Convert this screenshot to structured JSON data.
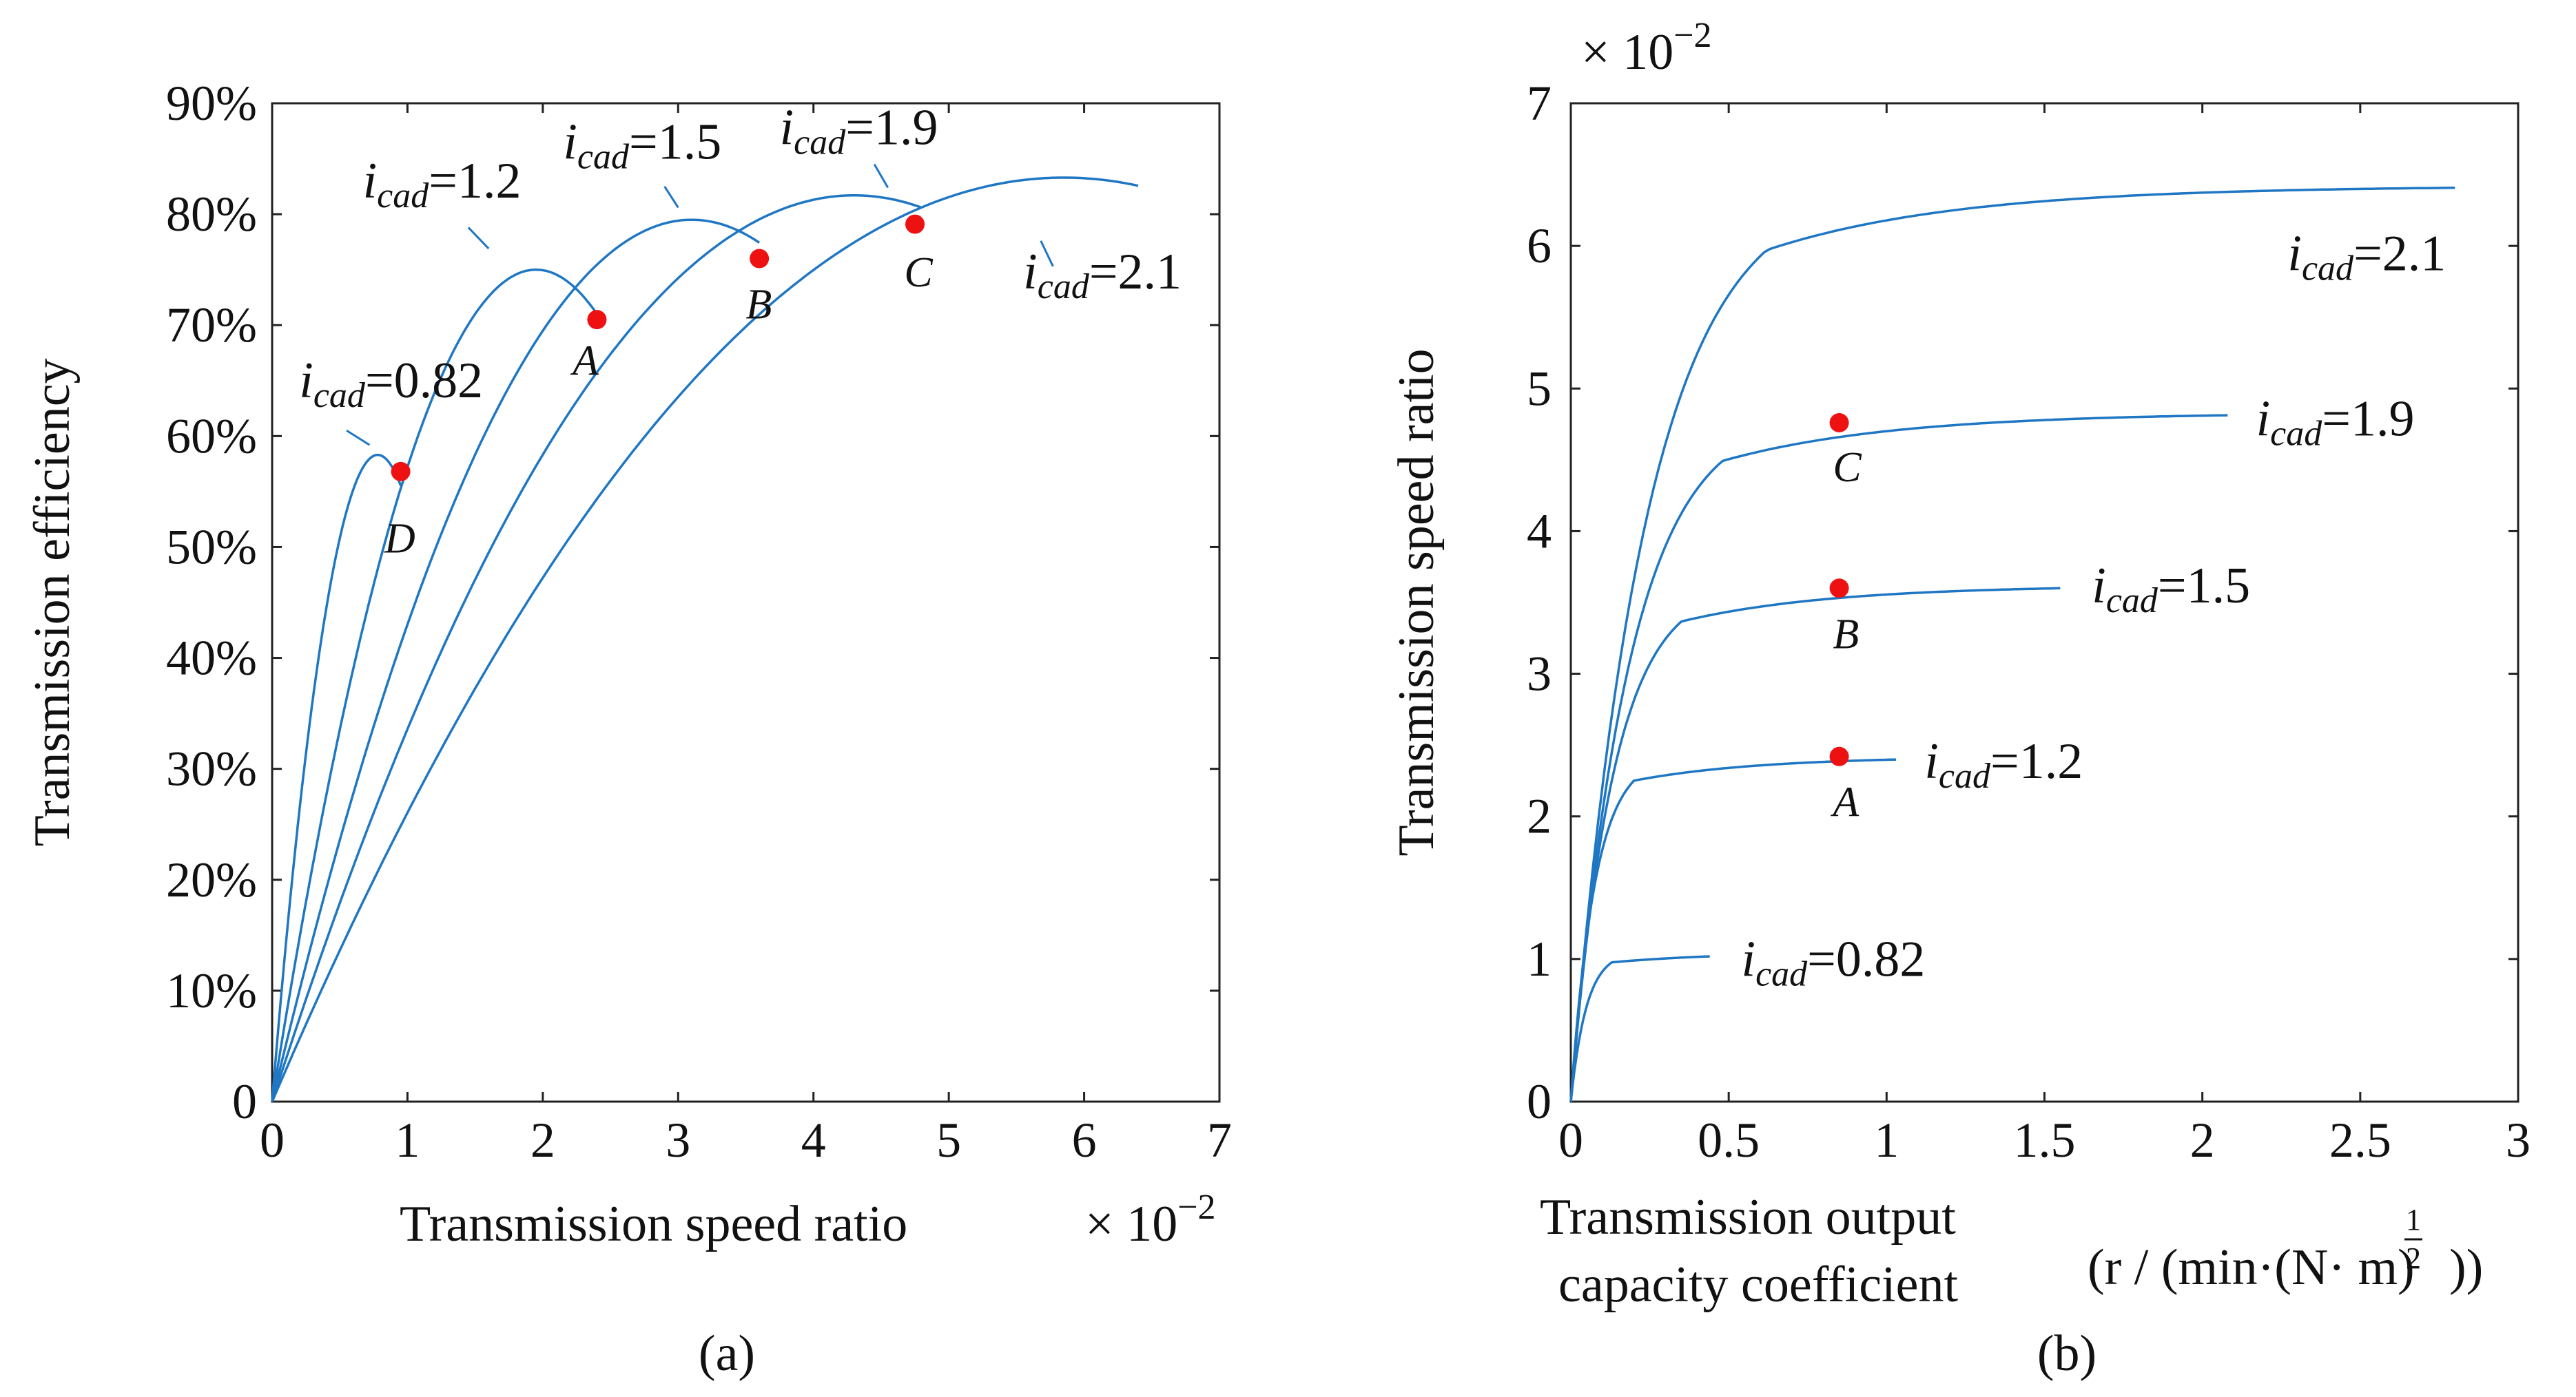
{
  "colors": {
    "curve": "#1f77c4",
    "point": "#ee1111",
    "axis": "#222222"
  },
  "chart_data": [
    {
      "type": "line",
      "caption": "(a)",
      "xlabel": "Transmission speed ratio",
      "x_multiplier": "× 10",
      "x_multiplier_exp": "−2",
      "ylabel": "Transmission efficiency",
      "xlim": [
        0,
        7
      ],
      "ylim": [
        0,
        90
      ],
      "xticks": [
        0,
        1,
        2,
        3,
        4,
        5,
        6,
        7
      ],
      "yticks": [
        0,
        10,
        20,
        30,
        40,
        50,
        60,
        70,
        80,
        90
      ],
      "ytick_labels": [
        "0",
        "10%",
        "20%",
        "30%",
        "40%",
        "50%",
        "60%",
        "70%",
        "80%",
        "90%"
      ],
      "series": [
        {
          "name": "0.82",
          "xmax": 0.95,
          "peak_x": 0.78,
          "peak_y": 58.3,
          "label_x": 0.2,
          "label_y": 63.5,
          "leader": [
            0.55,
            60.5,
            0.72,
            59.2
          ]
        },
        {
          "name": "1.2",
          "xmax": 2.4,
          "peak_x": 1.95,
          "peak_y": 75.0,
          "label_x": 0.67,
          "label_y": 81.5,
          "leader": [
            1.45,
            78.8,
            1.6,
            76.9
          ]
        },
        {
          "name": "1.5",
          "xmax": 3.6,
          "peak_x": 3.1,
          "peak_y": 79.5,
          "label_x": 2.15,
          "label_y": 85.0,
          "leader": [
            2.9,
            82.5,
            3.0,
            80.6
          ]
        },
        {
          "name": "1.9",
          "xmax": 4.8,
          "peak_x": 4.3,
          "peak_y": 81.7,
          "label_x": 3.75,
          "label_y": 86.3,
          "leader": [
            4.45,
            84.5,
            4.55,
            82.4
          ]
        },
        {
          "name": "2.1",
          "xmax": 6.4,
          "peak_x": 5.85,
          "peak_y": 83.3,
          "label_x": 5.55,
          "label_y": 73.3,
          "leader": [
            5.77,
            75.3,
            5.68,
            77.6
          ]
        }
      ],
      "points": [
        {
          "label": "A",
          "x": 2.4,
          "y": 70.5,
          "label_x": 2.22,
          "label_y": 65.5
        },
        {
          "label": "B",
          "x": 3.6,
          "y": 76.0,
          "label_x": 3.5,
          "label_y": 70.6
        },
        {
          "label": "C",
          "x": 4.75,
          "y": 79.1,
          "label_x": 4.67,
          "label_y": 73.5
        },
        {
          "label": "D",
          "x": 0.95,
          "y": 56.8,
          "label_x": 0.83,
          "label_y": 49.5
        }
      ]
    },
    {
      "type": "line",
      "caption": "(b)",
      "xlabel_line1": "Transmission output",
      "xlabel_line2": "capacity coefficient",
      "x_unit_pre": "(r / (min·(N· m)",
      "x_unit_exp_num": "1",
      "x_unit_exp_den": "2",
      "x_unit_post": "))",
      "ylabel": "Transmission speed ratio",
      "y_multiplier": "× 10",
      "y_multiplier_exp": "−2",
      "xlim": [
        0,
        3
      ],
      "ylim": [
        0,
        7
      ],
      "xticks": [
        0,
        0.5,
        1,
        1.5,
        2,
        2.5,
        3
      ],
      "xtick_labels": [
        "0",
        "0.5",
        "1",
        "1.5",
        "2",
        "2.5",
        "3"
      ],
      "yticks": [
        0,
        1,
        2,
        3,
        4,
        5,
        6,
        7
      ],
      "series": [
        {
          "name": "0.82",
          "plateau": 1.05,
          "knee_x": 0.13,
          "xmax": 0.44,
          "label_x": 0.54,
          "label_y": 0.88
        },
        {
          "name": "1.2",
          "plateau": 2.42,
          "knee_x": 0.2,
          "xmax": 1.03,
          "label_x": 1.12,
          "label_y": 2.27
        },
        {
          "name": "1.5",
          "plateau": 3.62,
          "knee_x": 0.35,
          "xmax": 1.55,
          "label_x": 1.65,
          "label_y": 3.5
        },
        {
          "name": "1.9",
          "plateau": 4.83,
          "knee_x": 0.48,
          "xmax": 2.08,
          "label_x": 2.17,
          "label_y": 4.67
        },
        {
          "name": "2.1",
          "plateau": 6.42,
          "knee_x": 0.62,
          "xmax": 2.8,
          "label_x": 2.27,
          "label_y": 5.83
        }
      ],
      "points": [
        {
          "label": "A",
          "x": 0.85,
          "y": 2.42,
          "label_x": 0.83,
          "label_y": 2.0
        },
        {
          "label": "B",
          "x": 0.85,
          "y": 3.6,
          "label_x": 0.83,
          "label_y": 3.18
        },
        {
          "label": "C",
          "x": 0.85,
          "y": 4.76,
          "label_x": 0.83,
          "label_y": 4.35
        }
      ]
    }
  ]
}
